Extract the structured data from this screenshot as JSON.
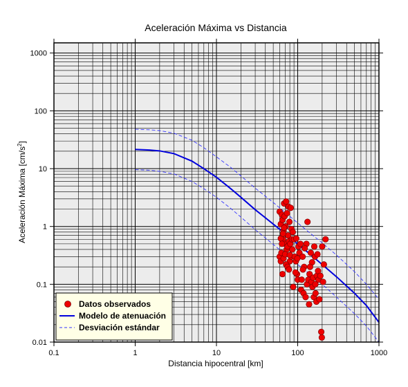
{
  "chart_data": {
    "type": "scatter",
    "title": "Aceleración Máxima vs Distancia",
    "xlabel": "Distancia hipocentral [km]",
    "ylabel_main": "Aceleración Máxima [cm/s",
    "ylabel_sup": "2",
    "ylabel_end": "]",
    "xscale": "log",
    "yscale": "log",
    "xlim": [
      0.1,
      1000
    ],
    "ylim": [
      0.01,
      1500
    ],
    "grid": true,
    "legend_position": "bottom-left",
    "x_ticks": [
      {
        "value": 0.1,
        "label": "0.1"
      },
      {
        "value": 1,
        "label": "1"
      },
      {
        "value": 10,
        "label": "10"
      },
      {
        "value": 100,
        "label": "100"
      },
      {
        "value": 1000,
        "label": "1000"
      }
    ],
    "y_ticks": [
      {
        "value": 0.01,
        "label": "0.01"
      },
      {
        "value": 0.1,
        "label": "0.1"
      },
      {
        "value": 1,
        "label": "1"
      },
      {
        "value": 10,
        "label": "10"
      },
      {
        "value": 100,
        "label": "100"
      },
      {
        "value": 1000,
        "label": "1000"
      }
    ],
    "legend": [
      {
        "label": "Datos observados",
        "symbol": "marker"
      },
      {
        "label": "Modelo de atenuación",
        "symbol": "solid"
      },
      {
        "label": "Desviación estándar",
        "symbol": "dashed"
      }
    ],
    "series": [
      {
        "name": "Datos observados",
        "kind": "scatter",
        "color": "#ee0000",
        "points": [
          [
            60,
            1.8
          ],
          [
            62,
            1.1
          ],
          [
            64,
            1.6
          ],
          [
            65,
            1.3
          ],
          [
            66,
            0.6
          ],
          [
            67,
            0.85
          ],
          [
            68,
            2.5
          ],
          [
            69,
            1.5
          ],
          [
            70,
            0.5
          ],
          [
            71,
            1.0
          ],
          [
            72,
            2.7
          ],
          [
            73,
            0.4
          ],
          [
            74,
            1.7
          ],
          [
            75,
            0.45
          ],
          [
            76,
            0.7
          ],
          [
            77,
            2.2
          ],
          [
            78,
            0.55
          ],
          [
            79,
            1.2
          ],
          [
            80,
            0.25
          ],
          [
            81,
            0.5
          ],
          [
            82,
            2.1
          ],
          [
            83,
            0.3
          ],
          [
            84,
            0.9
          ],
          [
            85,
            0.6
          ],
          [
            86,
            0.4
          ],
          [
            87,
            0.8
          ],
          [
            60,
            0.3
          ],
          [
            62,
            0.25
          ],
          [
            63,
            0.35
          ],
          [
            65,
            0.15
          ],
          [
            67,
            0.28
          ],
          [
            70,
            0.33
          ],
          [
            72,
            0.22
          ],
          [
            75,
            0.2
          ],
          [
            78,
            0.18
          ],
          [
            80,
            0.32
          ],
          [
            62,
            0.62
          ],
          [
            64,
            0.5
          ],
          [
            66,
            0.75
          ],
          [
            68,
            0.95
          ],
          [
            90,
            0.6
          ],
          [
            92,
            0.3
          ],
          [
            95,
            0.25
          ],
          [
            98,
            0.15
          ],
          [
            100,
            0.12
          ],
          [
            102,
            0.45
          ],
          [
            105,
            0.35
          ],
          [
            108,
            0.5
          ],
          [
            110,
            0.08
          ],
          [
            112,
            0.12
          ],
          [
            115,
            0.3
          ],
          [
            118,
            0.07
          ],
          [
            120,
            0.2
          ],
          [
            125,
            0.06
          ],
          [
            128,
            0.5
          ],
          [
            130,
            0.1
          ],
          [
            132,
            1.2
          ],
          [
            135,
            0.12
          ],
          [
            138,
            0.045
          ],
          [
            140,
            0.15
          ],
          [
            145,
            0.35
          ],
          [
            148,
            0.11
          ],
          [
            150,
            0.24
          ],
          [
            152,
            0.09
          ],
          [
            155,
            0.13
          ],
          [
            158,
            0.06
          ],
          [
            160,
            0.45
          ],
          [
            163,
            0.3
          ],
          [
            166,
            0.07
          ],
          [
            170,
            0.05
          ],
          [
            172,
            0.14
          ],
          [
            175,
            0.33
          ],
          [
            178,
            0.17
          ],
          [
            180,
            0.12
          ],
          [
            185,
            0.055
          ],
          [
            190,
            0.14
          ],
          [
            195,
            0.015
          ],
          [
            198,
            0.012
          ],
          [
            200,
            0.45
          ],
          [
            205,
            0.11
          ],
          [
            210,
            0.22
          ],
          [
            220,
            0.6
          ],
          [
            88,
            0.09
          ],
          [
            94,
            0.16
          ],
          [
            96,
            0.62
          ],
          [
            99,
            0.28
          ],
          [
            116,
            0.18
          ],
          [
            122,
            0.42
          ],
          [
            142,
            0.2
          ],
          [
            165,
            0.1
          ]
        ]
      },
      {
        "name": "Modelo de atenuación",
        "kind": "line",
        "color": "#0000dd",
        "style": "solid",
        "points": [
          [
            1,
            21.5
          ],
          [
            1.5,
            21
          ],
          [
            2,
            20.3
          ],
          [
            3,
            18.2
          ],
          [
            5,
            13.5
          ],
          [
            7,
            10
          ],
          [
            10,
            7.1
          ],
          [
            15,
            4.5
          ],
          [
            20,
            3.2
          ],
          [
            30,
            1.95
          ],
          [
            50,
            1.1
          ],
          [
            70,
            0.75
          ],
          [
            100,
            0.5
          ],
          [
            150,
            0.31
          ],
          [
            200,
            0.22
          ],
          [
            300,
            0.135
          ],
          [
            500,
            0.07
          ],
          [
            700,
            0.043
          ],
          [
            1000,
            0.022
          ]
        ]
      },
      {
        "name": "Desviación estándar",
        "kind": "line",
        "color": "#3333ff",
        "style": "dashed",
        "points": [
          [
            1,
            48
          ],
          [
            1.5,
            47
          ],
          [
            2,
            45.5
          ],
          [
            3,
            41
          ],
          [
            5,
            31
          ],
          [
            7,
            23
          ],
          [
            10,
            16
          ],
          [
            15,
            10.5
          ],
          [
            20,
            7.5
          ],
          [
            30,
            4.6
          ],
          [
            50,
            2.6
          ],
          [
            70,
            1.75
          ],
          [
            100,
            1.15
          ],
          [
            150,
            0.72
          ],
          [
            200,
            0.52
          ],
          [
            300,
            0.32
          ],
          [
            500,
            0.165
          ],
          [
            700,
            0.1
          ],
          [
            1000,
            0.055
          ]
        ]
      },
      {
        "name": "Desviación estándar (inferior)",
        "kind": "line",
        "color": "#3333ff",
        "style": "dashed",
        "points": [
          [
            1,
            9.6
          ],
          [
            1.5,
            9.4
          ],
          [
            2,
            9.0
          ],
          [
            3,
            8.1
          ],
          [
            5,
            6.0
          ],
          [
            7,
            4.5
          ],
          [
            10,
            3.2
          ],
          [
            15,
            2.05
          ],
          [
            20,
            1.45
          ],
          [
            30,
            0.88
          ],
          [
            50,
            0.49
          ],
          [
            70,
            0.33
          ],
          [
            100,
            0.22
          ],
          [
            150,
            0.14
          ],
          [
            200,
            0.1
          ],
          [
            300,
            0.06
          ],
          [
            500,
            0.031
          ],
          [
            700,
            0.019
          ],
          [
            1000,
            0.01
          ]
        ]
      }
    ]
  }
}
